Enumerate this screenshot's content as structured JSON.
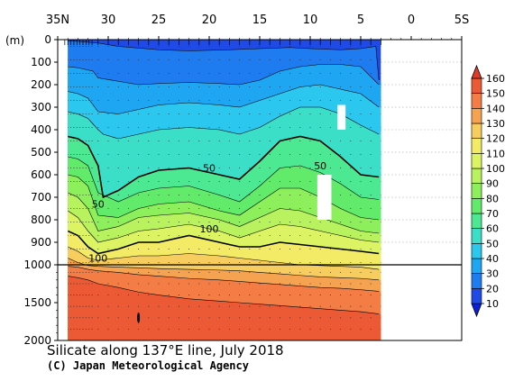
{
  "chart_data": {
    "type": "contour",
    "title": "Silicate along 137°E line, July 2018",
    "credit": "(C) Japan Meteorological Agency",
    "x_axis": {
      "position": "top",
      "ticks": [
        "35N",
        "30",
        "25",
        "20",
        "15",
        "10",
        "5",
        "0",
        "5S"
      ],
      "latitudes": [
        35,
        30,
        25,
        20,
        15,
        10,
        5,
        0,
        -5
      ],
      "range": [
        35,
        -5
      ]
    },
    "y_axis": {
      "unit_label": "(m)",
      "ticks_upper": [
        "0",
        "100",
        "200",
        "300",
        "400",
        "500",
        "600",
        "700",
        "800",
        "900",
        "1000"
      ],
      "ticks_lower": [
        "1500",
        "2000"
      ],
      "upper_range": [
        0,
        1000
      ],
      "lower_range": [
        1000,
        2000
      ],
      "break_depth": 1000
    },
    "colorbar": {
      "labels": [
        "10",
        "20",
        "30",
        "40",
        "50",
        "60",
        "70",
        "80",
        "90",
        "100",
        "110",
        "120",
        "130",
        "140",
        "150",
        "160"
      ],
      "levels": [
        10,
        20,
        30,
        40,
        50,
        60,
        70,
        80,
        90,
        100,
        110,
        120,
        130,
        140,
        150,
        160
      ],
      "colors": [
        "#1f4ae6",
        "#1e7bf0",
        "#1fa6f3",
        "#2cc7ee",
        "#3bdfc7",
        "#4ce892",
        "#62ea6b",
        "#8cef5b",
        "#b8f25e",
        "#dcf463",
        "#f3eb66",
        "#f7cd5f",
        "#f5a350",
        "#f37d45",
        "#ec5a35",
        "#e24a2d"
      ]
    },
    "station_latitudes": [
      34.3,
      34,
      33.7,
      33.4,
      33.1,
      32.8,
      32.5,
      32.2,
      31.9,
      31.6,
      31,
      30,
      29,
      28,
      27,
      26,
      25,
      24,
      23,
      22,
      21,
      20,
      19,
      18,
      17,
      16,
      15,
      14,
      13,
      12,
      11,
      10,
      9,
      8,
      7,
      6,
      5,
      4,
      3
    ],
    "section_extent_lat": [
      34.0,
      3.0
    ],
    "isoline_depths": [
      {
        "level": 10,
        "lat": [
          34,
          33,
          31,
          29,
          25,
          22,
          18,
          15,
          12,
          10,
          7,
          5,
          3.5,
          3.2
        ],
        "depth": [
          5,
          8,
          15,
          30,
          45,
          50,
          45,
          40,
          35,
          40,
          45,
          40,
          30,
          180
        ]
      },
      {
        "level": 20,
        "lat": [
          34,
          33,
          31.5,
          31,
          29,
          27,
          25,
          22,
          19,
          17,
          15,
          13,
          11,
          9,
          7,
          5,
          3.2
        ],
        "depth": [
          120,
          125,
          140,
          170,
          185,
          200,
          195,
          190,
          195,
          200,
          180,
          140,
          120,
          110,
          110,
          120,
          200
        ]
      },
      {
        "level": 30,
        "lat": [
          34,
          33,
          32,
          31,
          29,
          27,
          25,
          22,
          19,
          17,
          15,
          13,
          11,
          9,
          7,
          5,
          3.2
        ],
        "depth": [
          230,
          240,
          260,
          320,
          330,
          310,
          290,
          280,
          290,
          300,
          270,
          240,
          210,
          200,
          220,
          240,
          300
        ]
      },
      {
        "level": 40,
        "lat": [
          34,
          33,
          32,
          31,
          30.5,
          29,
          27,
          25,
          22,
          19,
          17,
          15,
          13,
          11,
          9,
          7,
          5,
          3.2
        ],
        "depth": [
          320,
          330,
          350,
          400,
          420,
          440,
          420,
          400,
          390,
          400,
          420,
          390,
          340,
          300,
          300,
          330,
          380,
          420
        ]
      },
      {
        "level": 50,
        "lat": [
          34,
          33,
          32,
          31,
          30.5,
          29,
          27,
          25,
          22,
          19,
          17,
          15,
          13,
          11,
          9,
          7,
          5,
          3.2
        ],
        "depth": [
          430,
          440,
          470,
          560,
          700,
          670,
          610,
          580,
          570,
          600,
          620,
          540,
          450,
          430,
          450,
          520,
          600,
          610
        ]
      },
      {
        "level": 60,
        "lat": [
          34,
          33,
          32,
          31,
          29,
          27,
          25,
          22,
          19,
          17,
          15,
          13,
          11,
          9,
          7,
          5,
          3.2
        ],
        "depth": [
          520,
          530,
          560,
          680,
          720,
          680,
          660,
          650,
          690,
          720,
          650,
          570,
          560,
          590,
          640,
          700,
          710
        ]
      },
      {
        "level": 70,
        "lat": [
          34,
          33,
          32,
          31,
          29,
          27,
          25,
          22,
          19,
          17,
          15,
          13,
          11,
          9,
          7,
          5,
          3.2
        ],
        "depth": [
          600,
          610,
          650,
          780,
          790,
          750,
          730,
          720,
          760,
          780,
          720,
          660,
          660,
          700,
          750,
          790,
          800
        ]
      },
      {
        "level": 80,
        "lat": [
          34,
          33,
          32,
          31,
          29,
          27,
          25,
          22,
          19,
          17,
          15,
          13,
          11,
          9,
          7,
          5,
          3.2
        ],
        "depth": [
          680,
          700,
          750,
          850,
          830,
          790,
          780,
          770,
          800,
          830,
          790,
          750,
          760,
          790,
          820,
          850,
          860
        ]
      },
      {
        "level": 90,
        "lat": [
          34,
          33,
          32,
          31,
          29,
          27,
          25,
          22,
          19,
          17,
          15,
          13,
          11,
          9,
          7,
          5,
          3.2
        ],
        "depth": [
          760,
          790,
          850,
          900,
          880,
          850,
          840,
          820,
          850,
          880,
          850,
          820,
          830,
          850,
          870,
          890,
          900
        ]
      },
      {
        "level": 100,
        "lat": [
          34,
          33,
          32,
          31,
          29,
          27,
          25,
          22,
          19,
          17,
          15,
          13,
          11,
          9,
          7,
          5,
          3.2
        ],
        "depth": [
          850,
          870,
          920,
          950,
          930,
          900,
          900,
          870,
          900,
          920,
          920,
          900,
          910,
          920,
          930,
          940,
          950
        ]
      },
      {
        "level": 110,
        "lat": [
          34,
          33,
          32,
          31,
          29,
          27,
          25,
          22,
          19,
          17,
          15,
          13,
          11,
          9,
          7,
          5,
          3.2
        ],
        "depth": [
          920,
          940,
          970,
          980,
          970,
          960,
          960,
          950,
          960,
          970,
          980,
          990,
          1000,
          1010,
          1020,
          1030,
          1060
        ]
      },
      {
        "level": 120,
        "lat": [
          34,
          33,
          32,
          31,
          29,
          27,
          25,
          22,
          19,
          17,
          15,
          13,
          11,
          9,
          7,
          5,
          3.2
        ],
        "depth": [
          970,
          990,
          1010,
          1020,
          1030,
          1040,
          1050,
          1060,
          1070,
          1080,
          1100,
          1120,
          1140,
          1160,
          1170,
          1180,
          1200
        ]
      },
      {
        "level": 130,
        "lat": [
          34,
          33,
          32,
          31,
          29,
          27,
          25,
          22,
          19,
          17,
          15,
          13,
          11,
          9,
          7,
          5,
          3.2
        ],
        "depth": [
          1020,
          1030,
          1060,
          1080,
          1100,
          1130,
          1150,
          1180,
          1200,
          1220,
          1240,
          1260,
          1280,
          1300,
          1310,
          1330,
          1350
        ]
      },
      {
        "level": 140,
        "lat": [
          34,
          33,
          32,
          31,
          29,
          27,
          25,
          22,
          19,
          17,
          15,
          13,
          11,
          9,
          7,
          5,
          3.2
        ],
        "depth": [
          1150,
          1170,
          1200,
          1250,
          1300,
          1360,
          1400,
          1450,
          1480,
          1500,
          1520,
          1540,
          1560,
          1580,
          1600,
          1620,
          1650
        ]
      }
    ],
    "contour_labels": [
      {
        "text": "50",
        "lat": 20.0,
        "depth": 570
      },
      {
        "text": "50",
        "lat": 9.0,
        "depth": 560
      },
      {
        "text": "50",
        "lat": 31.0,
        "depth": 730
      },
      {
        "text": "100",
        "lat": 20.0,
        "depth": 840
      },
      {
        "text": "100",
        "lat": 31.0,
        "depth": 970
      }
    ],
    "missing_data": [
      {
        "lat": [
          7.3,
          6.5
        ],
        "depth": [
          290,
          400
        ]
      },
      {
        "lat": [
          9.3,
          7.9
        ],
        "depth": [
          600,
          800
        ]
      }
    ]
  }
}
